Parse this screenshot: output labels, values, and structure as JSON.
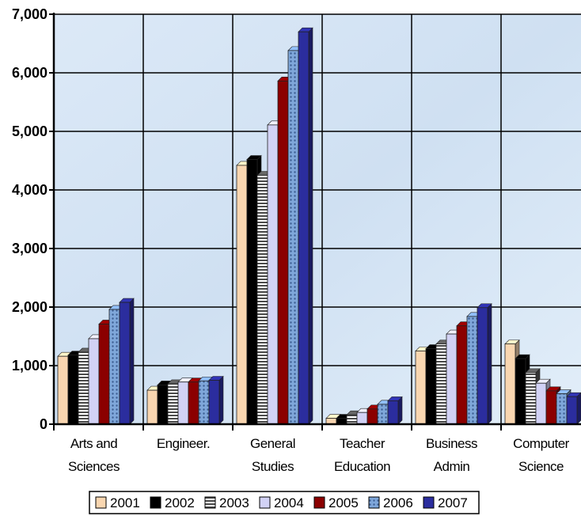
{
  "chart_data": {
    "type": "bar",
    "title": "",
    "xlabel": "",
    "ylabel": "",
    "ylim": [
      0,
      7000
    ],
    "yticks": [
      0,
      1000,
      2000,
      3000,
      4000,
      5000,
      6000,
      7000
    ],
    "ytick_labels": [
      "0",
      "1,000",
      "2,000",
      "3,000",
      "4,000",
      "5,000",
      "6,000",
      "7,000"
    ],
    "categories": [
      [
        "Arts and",
        "Sciences"
      ],
      [
        "Engineer."
      ],
      [
        "General",
        "Studies"
      ],
      [
        "Teacher",
        "Education"
      ],
      [
        "Business",
        "Admin"
      ],
      [
        "Computer",
        "Science"
      ]
    ],
    "series": [
      {
        "name": "2001",
        "color": "#F9D6B0",
        "pattern": "solid",
        "values": [
          1160,
          580,
          4420,
          100,
          1250,
          1370
        ]
      },
      {
        "name": "2002",
        "color": "#000000",
        "pattern": "solid",
        "values": [
          1180,
          670,
          4520,
          100,
          1290,
          1120
        ]
      },
      {
        "name": "2003",
        "color": "#5A5A5A",
        "pattern": "stripes",
        "values": [
          1230,
          690,
          4250,
          160,
          1370,
          880
        ]
      },
      {
        "name": "2004",
        "color": "#D2D2F5",
        "pattern": "solid",
        "values": [
          1460,
          720,
          5110,
          200,
          1540,
          700
        ]
      },
      {
        "name": "2005",
        "color": "#8B0000",
        "pattern": "solid",
        "values": [
          1710,
          720,
          5860,
          260,
          1680,
          570
        ]
      },
      {
        "name": "2006",
        "color": "#7FA7DA",
        "pattern": "dots",
        "values": [
          1960,
          740,
          6380,
          340,
          1840,
          520
        ]
      },
      {
        "name": "2007",
        "color": "#2B2D9E",
        "pattern": "solid",
        "values": [
          2080,
          750,
          6700,
          400,
          1990,
          470
        ]
      }
    ],
    "grid": true,
    "legend_position": "bottom"
  }
}
